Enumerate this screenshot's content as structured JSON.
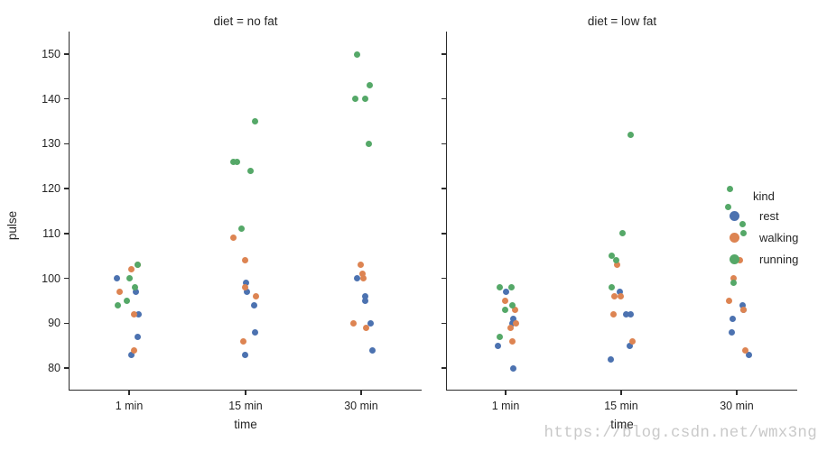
{
  "watermark": {
    "text": "https://blog.csdn.net/wmx3ng",
    "color": "#c9c9c9"
  },
  "chart_data": {
    "type": "scatter",
    "variant": "faceted-stripplot",
    "categories": [
      "1 min",
      "15 min",
      "30 min"
    ],
    "xlabel": "time",
    "ylabel": "pulse",
    "yticks": [
      80,
      90,
      100,
      110,
      120,
      130,
      140,
      150
    ],
    "ylim": [
      76,
      155
    ],
    "grid": false,
    "axis_color": "#262626",
    "palette": {
      "rest": "#4c72b0",
      "walking": "#dd8452",
      "running": "#55a868"
    },
    "legend": {
      "title": "kind",
      "position": "inside-right-panel",
      "entries": [
        {
          "label": "rest",
          "color": "#4c72b0"
        },
        {
          "label": "walking",
          "color": "#dd8452"
        },
        {
          "label": "running",
          "color": "#55a868"
        }
      ]
    },
    "facets": [
      {
        "title": "diet = no fat",
        "points": [
          {
            "kind": "rest",
            "time": "1 min",
            "pulse": 100,
            "dx": -14
          },
          {
            "kind": "rest",
            "time": "1 min",
            "pulse": 97,
            "dx": 7
          },
          {
            "kind": "rest",
            "time": "1 min",
            "pulse": 92,
            "dx": 10.5
          },
          {
            "kind": "rest",
            "time": "1 min",
            "pulse": 87,
            "dx": 9.7
          },
          {
            "kind": "rest",
            "time": "1 min",
            "pulse": 83,
            "dx": 2
          },
          {
            "kind": "rest",
            "time": "15 min",
            "pulse": 99,
            "dx": 0.3
          },
          {
            "kind": "rest",
            "time": "15 min",
            "pulse": 97,
            "dx": 1.3
          },
          {
            "kind": "rest",
            "time": "15 min",
            "pulse": 94,
            "dx": 9.7
          },
          {
            "kind": "rest",
            "time": "15 min",
            "pulse": 88,
            "dx": 10.7
          },
          {
            "kind": "rest",
            "time": "15 min",
            "pulse": 83,
            "dx": -0.3
          },
          {
            "kind": "rest",
            "time": "30 min",
            "pulse": 100,
            "dx": -5
          },
          {
            "kind": "rest",
            "time": "30 min",
            "pulse": 96,
            "dx": 4.3
          },
          {
            "kind": "rest",
            "time": "30 min",
            "pulse": 95,
            "dx": 4.3
          },
          {
            "kind": "rest",
            "time": "30 min",
            "pulse": 90,
            "dx": 10
          },
          {
            "kind": "rest",
            "time": "30 min",
            "pulse": 84,
            "dx": 12.7
          },
          {
            "kind": "walking",
            "time": "1 min",
            "pulse": 103,
            "dx": 9
          },
          {
            "kind": "walking",
            "time": "1 min",
            "pulse": 102,
            "dx": 2.7
          },
          {
            "kind": "walking",
            "time": "1 min",
            "pulse": 97,
            "dx": -10.3
          },
          {
            "kind": "walking",
            "time": "1 min",
            "pulse": 92,
            "dx": 5.5
          },
          {
            "kind": "walking",
            "time": "1 min",
            "pulse": 84,
            "dx": 5.3
          },
          {
            "kind": "walking",
            "time": "15 min",
            "pulse": 109,
            "dx": -13.7
          },
          {
            "kind": "walking",
            "time": "15 min",
            "pulse": 104,
            "dx": -1
          },
          {
            "kind": "walking",
            "time": "15 min",
            "pulse": 98,
            "dx": -0.3
          },
          {
            "kind": "walking",
            "time": "15 min",
            "pulse": 96,
            "dx": 11.3
          },
          {
            "kind": "walking",
            "time": "15 min",
            "pulse": 86,
            "dx": -2.7
          },
          {
            "kind": "walking",
            "time": "30 min",
            "pulse": 103,
            "dx": -0.7
          },
          {
            "kind": "walking",
            "time": "30 min",
            "pulse": 101,
            "dx": 1.7
          },
          {
            "kind": "walking",
            "time": "30 min",
            "pulse": 100,
            "dx": 2.5
          },
          {
            "kind": "walking",
            "time": "30 min",
            "pulse": 90,
            "dx": -9
          },
          {
            "kind": "walking",
            "time": "30 min",
            "pulse": 89,
            "dx": 5
          },
          {
            "kind": "running",
            "time": "1 min",
            "pulse": 103,
            "dx": 9
          },
          {
            "kind": "running",
            "time": "1 min",
            "pulse": 100,
            "dx": 0.3
          },
          {
            "kind": "running",
            "time": "1 min",
            "pulse": 98,
            "dx": 6.3
          },
          {
            "kind": "running",
            "time": "1 min",
            "pulse": 95,
            "dx": -3
          },
          {
            "kind": "running",
            "time": "1 min",
            "pulse": 94,
            "dx": -13
          },
          {
            "kind": "running",
            "time": "15 min",
            "pulse": 135,
            "dx": 10.7
          },
          {
            "kind": "running",
            "time": "15 min",
            "pulse": 126,
            "dx": -14
          },
          {
            "kind": "running",
            "time": "15 min",
            "pulse": 126,
            "dx": -9.5
          },
          {
            "kind": "running",
            "time": "15 min",
            "pulse": 124,
            "dx": 5.3
          },
          {
            "kind": "running",
            "time": "15 min",
            "pulse": 111,
            "dx": -4.3
          },
          {
            "kind": "running",
            "time": "30 min",
            "pulse": 150,
            "dx": -5
          },
          {
            "kind": "running",
            "time": "30 min",
            "pulse": 143,
            "dx": 9
          },
          {
            "kind": "running",
            "time": "30 min",
            "pulse": 140,
            "dx": -6.7
          },
          {
            "kind": "running",
            "time": "30 min",
            "pulse": 140,
            "dx": 4.3
          },
          {
            "kind": "running",
            "time": "30 min",
            "pulse": 130,
            "dx": 8.3
          }
        ]
      },
      {
        "title": "diet = low fat",
        "points": [
          {
            "kind": "rest",
            "time": "1 min",
            "pulse": 97,
            "dx": 0
          },
          {
            "kind": "rest",
            "time": "1 min",
            "pulse": 91,
            "dx": 8.3
          },
          {
            "kind": "rest",
            "time": "1 min",
            "pulse": 90,
            "dx": 7.3
          },
          {
            "kind": "rest",
            "time": "1 min",
            "pulse": 85,
            "dx": -8.3
          },
          {
            "kind": "rest",
            "time": "1 min",
            "pulse": 80,
            "dx": 8.3
          },
          {
            "kind": "rest",
            "time": "15 min",
            "pulse": 97,
            "dx": -1.3
          },
          {
            "kind": "rest",
            "time": "15 min",
            "pulse": 92,
            "dx": 5
          },
          {
            "kind": "rest",
            "time": "15 min",
            "pulse": 92,
            "dx": 10
          },
          {
            "kind": "rest",
            "time": "15 min",
            "pulse": 85,
            "dx": 9.7
          },
          {
            "kind": "rest",
            "time": "15 min",
            "pulse": 82,
            "dx": -11.3
          },
          {
            "kind": "rest",
            "time": "30 min",
            "pulse": 94,
            "dx": 6.7
          },
          {
            "kind": "rest",
            "time": "30 min",
            "pulse": 93,
            "dx": 7.3
          },
          {
            "kind": "rest",
            "time": "30 min",
            "pulse": 91,
            "dx": -4.3
          },
          {
            "kind": "rest",
            "time": "30 min",
            "pulse": 88,
            "dx": -6
          },
          {
            "kind": "rest",
            "time": "30 min",
            "pulse": 83,
            "dx": 13.3
          },
          {
            "kind": "walking",
            "time": "1 min",
            "pulse": 95,
            "dx": -0.7
          },
          {
            "kind": "walking",
            "time": "1 min",
            "pulse": 93,
            "dx": 10
          },
          {
            "kind": "walking",
            "time": "1 min",
            "pulse": 90,
            "dx": 11.7
          },
          {
            "kind": "walking",
            "time": "1 min",
            "pulse": 89,
            "dx": 5.5
          },
          {
            "kind": "walking",
            "time": "1 min",
            "pulse": 86,
            "dx": 7.7
          },
          {
            "kind": "walking",
            "time": "15 min",
            "pulse": 103,
            "dx": -5
          },
          {
            "kind": "walking",
            "time": "15 min",
            "pulse": 96,
            "dx": -8
          },
          {
            "kind": "walking",
            "time": "15 min",
            "pulse": 96,
            "dx": -0.3
          },
          {
            "kind": "walking",
            "time": "15 min",
            "pulse": 92,
            "dx": -8.7
          },
          {
            "kind": "walking",
            "time": "15 min",
            "pulse": 86,
            "dx": 12
          },
          {
            "kind": "walking",
            "time": "30 min",
            "pulse": 104,
            "dx": 3.3
          },
          {
            "kind": "walking",
            "time": "30 min",
            "pulse": 100,
            "dx": -3.3
          },
          {
            "kind": "walking",
            "time": "30 min",
            "pulse": 95,
            "dx": -8.7
          },
          {
            "kind": "walking",
            "time": "30 min",
            "pulse": 93,
            "dx": 7.3
          },
          {
            "kind": "walking",
            "time": "30 min",
            "pulse": 84,
            "dx": 9
          },
          {
            "kind": "running",
            "time": "1 min",
            "pulse": 98,
            "dx": -6.7
          },
          {
            "kind": "running",
            "time": "1 min",
            "pulse": 98,
            "dx": 6.7
          },
          {
            "kind": "running",
            "time": "1 min",
            "pulse": 94,
            "dx": 7.7
          },
          {
            "kind": "running",
            "time": "1 min",
            "pulse": 93,
            "dx": -0.7
          },
          {
            "kind": "running",
            "time": "1 min",
            "pulse": 87,
            "dx": -6.7
          },
          {
            "kind": "running",
            "time": "15 min",
            "pulse": 132,
            "dx": 10.3
          },
          {
            "kind": "running",
            "time": "15 min",
            "pulse": 110,
            "dx": 1.3
          },
          {
            "kind": "running",
            "time": "15 min",
            "pulse": 105,
            "dx": -10.3
          },
          {
            "kind": "running",
            "time": "15 min",
            "pulse": 104,
            "dx": -5.3
          },
          {
            "kind": "running",
            "time": "15 min",
            "pulse": 98,
            "dx": -10.3
          },
          {
            "kind": "running",
            "time": "30 min",
            "pulse": 120,
            "dx": -7.7
          },
          {
            "kind": "running",
            "time": "30 min",
            "pulse": 116,
            "dx": -10
          },
          {
            "kind": "running",
            "time": "30 min",
            "pulse": 112,
            "dx": 6.7
          },
          {
            "kind": "running",
            "time": "30 min",
            "pulse": 110,
            "dx": 7.3
          },
          {
            "kind": "running",
            "time": "30 min",
            "pulse": 99,
            "dx": -3.3
          }
        ]
      }
    ]
  }
}
